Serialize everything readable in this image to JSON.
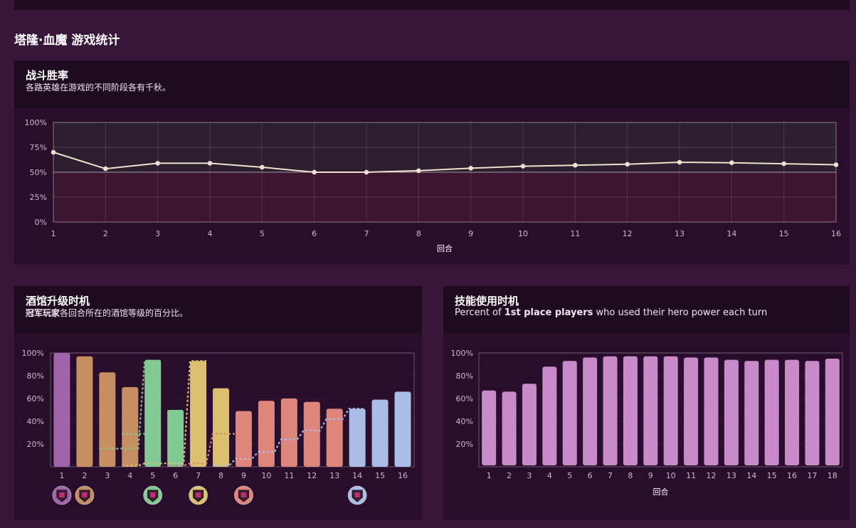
{
  "page": {
    "title": "塔隆·血魔 游戏统计"
  },
  "panels": {
    "winrate": {
      "title": "战斗胜率",
      "subtitle": "各路英雄在游戏的不同阶段各有千秋。"
    },
    "tavern": {
      "title": "酒馆升级时机",
      "subtitle_bold": "冠军玩家",
      "subtitle_rest": "各回合所在的酒馆等级的百分比。"
    },
    "power": {
      "title": "技能使用时机",
      "subtitle_pre": "Percent of ",
      "subtitle_bold": "1st place players",
      "subtitle_post": " who used their hero power each turn"
    }
  },
  "chart_data": [
    {
      "id": "winrate",
      "type": "line",
      "x": [
        1,
        2,
        3,
        4,
        5,
        6,
        7,
        8,
        9,
        10,
        11,
        12,
        13,
        14,
        15,
        16
      ],
      "series": [
        {
          "values": [
            70,
            53.5,
            59,
            59,
            55,
            50,
            50,
            51.5,
            54,
            56,
            57,
            58,
            60,
            59.5,
            58.5,
            57.5
          ]
        }
      ],
      "xlabel": "回合",
      "yticks": [
        "0%",
        "25%",
        "50%",
        "75%",
        "100%"
      ],
      "ylim": [
        0,
        100
      ],
      "colors": {
        "line": "#f0e0cc",
        "upper_band": "#2c2030",
        "lower_band": "#3d1530"
      }
    },
    {
      "id": "tavern",
      "type": "bar",
      "categories": [
        "1",
        "2",
        "3",
        "4",
        "5",
        "6",
        "7",
        "8",
        "9",
        "10",
        "11",
        "12",
        "13",
        "14",
        "15",
        "16"
      ],
      "bar_values": [
        100,
        97,
        83,
        70,
        94,
        50,
        93,
        69,
        49,
        58,
        60,
        57,
        51,
        51,
        59,
        66
      ],
      "bar_tiers": [
        1,
        2,
        2,
        2,
        3,
        3,
        4,
        4,
        5,
        5,
        5,
        5,
        5,
        6,
        6,
        6
      ],
      "dashed_series": [
        {
          "tier": 3,
          "values": [
            null,
            null,
            16,
            16,
            93,
            null,
            null,
            null,
            null,
            null,
            null,
            null,
            null,
            null,
            null,
            null
          ]
        },
        {
          "tier": 3,
          "values": [
            null,
            null,
            null,
            29,
            29,
            null,
            null,
            null,
            null,
            null,
            null,
            null,
            null,
            null,
            null,
            null
          ]
        },
        {
          "tier": 3,
          "values": [
            null,
            null,
            null,
            null,
            null,
            49,
            null,
            null,
            null,
            null,
            null,
            null,
            null,
            null,
            null,
            null
          ]
        },
        {
          "tier": 4,
          "values": [
            null,
            null,
            null,
            1,
            3,
            3,
            93,
            null,
            null,
            null,
            null,
            null,
            null,
            null,
            null,
            null
          ]
        },
        {
          "tier": 5,
          "values": [
            null,
            null,
            null,
            null,
            null,
            1,
            3,
            29,
            29,
            null,
            null,
            null,
            null,
            null,
            null,
            null
          ]
        },
        {
          "tier": 6,
          "values": [
            null,
            null,
            null,
            null,
            null,
            null,
            null,
            1,
            7,
            13,
            24,
            32,
            42,
            51,
            null,
            null
          ]
        }
      ],
      "upgrade_badges": [
        1,
        2,
        5,
        7,
        9,
        14
      ],
      "tier_colors": {
        "1": "#a263ad",
        "2": "#c58f62",
        "3": "#82c993",
        "4": "#dcc070",
        "5": "#e0857b",
        "6": "#a9bde6"
      },
      "yticks": [
        "20%",
        "40%",
        "60%",
        "80%",
        "100%"
      ],
      "ylim": [
        0,
        100
      ]
    },
    {
      "id": "power",
      "type": "bar",
      "categories": [
        "1",
        "2",
        "3",
        "4",
        "5",
        "6",
        "7",
        "8",
        "9",
        "10",
        "11",
        "12",
        "13",
        "14",
        "15",
        "16",
        "17",
        "18"
      ],
      "values": [
        67,
        66,
        73,
        88,
        93,
        96,
        97,
        97,
        97,
        97,
        96,
        96,
        94,
        93,
        94,
        94,
        93,
        95
      ],
      "xlabel": "回合",
      "yticks": [
        "20%",
        "40%",
        "60%",
        "80%",
        "100%"
      ],
      "ylim": [
        0,
        100
      ],
      "colors": {
        "bar": "#c98ac9"
      }
    }
  ]
}
